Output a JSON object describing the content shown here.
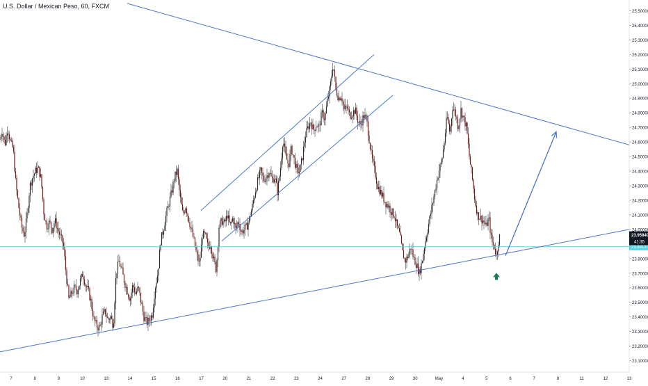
{
  "header": {
    "symbol_title": "U.S. Dollar / Mexican Peso, 60, FXCM"
  },
  "colors": {
    "background": "#ffffff",
    "candle_body": "#7a1218",
    "candle_wick": "#8c8c8c",
    "trendline": "#4a76c9",
    "horizontal_level": "#4fd6e8",
    "arrow_marker": "#1f7a56",
    "price_label_bg": "#131722",
    "level_label_bg": "#4fd6e8",
    "axis_text": "#131722"
  },
  "chart_data": {
    "type": "candlestick",
    "title": "U.S. Dollar / Mexican Peso, 60, FXCM",
    "ylim": [
      23.05,
      25.55
    ],
    "y_ticks": [
      "25.50000",
      "25.40000",
      "25.30000",
      "25.20000",
      "25.10000",
      "25.00000",
      "24.90000",
      "24.80000",
      "24.70000",
      "24.60000",
      "24.50000",
      "24.40000",
      "24.30000",
      "24.20000",
      "24.10000",
      "24.00000",
      "23.90000",
      "23.80000",
      "23.70000",
      "23.60000",
      "23.50000",
      "23.40000",
      "23.30000",
      "23.20000",
      "23.10000"
    ],
    "x_ticks": [
      "7",
      "8",
      "9",
      "10",
      "13",
      "14",
      "15",
      "16",
      "17",
      "20",
      "21",
      "22",
      "23",
      "24",
      "27",
      "28",
      "29",
      "30",
      "May",
      "4",
      "5",
      "6",
      "7",
      "8",
      "11",
      "12",
      "13"
    ],
    "current_price_label": "23.95840",
    "countdown_label": "41:35",
    "level_label": "23.88137",
    "horizontal_level": 23.8814,
    "price_path": [
      [
        0,
        24.62
      ],
      [
        3,
        24.68
      ],
      [
        7,
        24.58
      ],
      [
        11,
        24.7
      ],
      [
        15,
        24.6
      ],
      [
        19,
        24.55
      ],
      [
        23,
        24.3
      ],
      [
        27,
        24.15
      ],
      [
        31,
        24.02
      ],
      [
        35,
        23.96
      ],
      [
        39,
        24.1
      ],
      [
        43,
        24.3
      ],
      [
        47,
        24.36
      ],
      [
        51,
        24.4
      ],
      [
        55,
        24.42
      ],
      [
        59,
        24.35
      ],
      [
        63,
        24.12
      ],
      [
        67,
        24.02
      ],
      [
        71,
        24.05
      ],
      [
        75,
        24.0
      ],
      [
        79,
        24.06
      ],
      [
        83,
        24.0
      ],
      [
        87,
        23.95
      ],
      [
        91,
        23.9
      ],
      [
        95,
        23.7
      ],
      [
        99,
        23.52
      ],
      [
        103,
        23.56
      ],
      [
        107,
        23.6
      ],
      [
        111,
        23.58
      ],
      [
        115,
        23.64
      ],
      [
        119,
        23.7
      ],
      [
        123,
        23.62
      ],
      [
        127,
        23.58
      ],
      [
        131,
        23.5
      ],
      [
        135,
        23.38
      ],
      [
        139,
        23.34
      ],
      [
        143,
        23.32
      ],
      [
        147,
        23.4
      ],
      [
        151,
        23.44
      ],
      [
        155,
        23.38
      ],
      [
        159,
        23.4
      ],
      [
        163,
        23.34
      ],
      [
        167,
        23.7
      ],
      [
        171,
        23.78
      ],
      [
        175,
        23.72
      ],
      [
        179,
        23.64
      ],
      [
        183,
        23.58
      ],
      [
        187,
        23.52
      ],
      [
        191,
        23.62
      ],
      [
        195,
        23.56
      ],
      [
        199,
        23.6
      ],
      [
        203,
        23.5
      ],
      [
        207,
        23.4
      ],
      [
        211,
        23.36
      ],
      [
        215,
        23.38
      ],
      [
        219,
        23.42
      ],
      [
        223,
        23.6
      ],
      [
        227,
        23.7
      ],
      [
        231,
        23.92
      ],
      [
        235,
        24.0
      ],
      [
        239,
        24.1
      ],
      [
        243,
        24.18
      ],
      [
        247,
        24.26
      ],
      [
        251,
        24.36
      ],
      [
        255,
        24.4
      ],
      [
        259,
        24.22
      ],
      [
        263,
        24.1
      ],
      [
        267,
        24.16
      ],
      [
        271,
        24.08
      ],
      [
        275,
        24.0
      ],
      [
        279,
        23.92
      ],
      [
        283,
        23.82
      ],
      [
        287,
        23.76
      ],
      [
        291,
        23.96
      ],
      [
        295,
        23.96
      ],
      [
        299,
        23.88
      ],
      [
        303,
        23.9
      ],
      [
        307,
        23.8
      ],
      [
        311,
        23.72
      ],
      [
        315,
        24.02
      ],
      [
        319,
        24.06
      ],
      [
        323,
        24.04
      ],
      [
        327,
        24.1
      ],
      [
        331,
        24.02
      ],
      [
        335,
        24.08
      ],
      [
        339,
        24.0
      ],
      [
        343,
        24.06
      ],
      [
        347,
        23.98
      ],
      [
        351,
        24.0
      ],
      [
        355,
        24.02
      ],
      [
        359,
        24.08
      ],
      [
        363,
        24.16
      ],
      [
        367,
        24.26
      ],
      [
        371,
        24.34
      ],
      [
        375,
        24.4
      ],
      [
        379,
        24.34
      ],
      [
        383,
        24.36
      ],
      [
        387,
        24.4
      ],
      [
        391,
        24.34
      ],
      [
        395,
        24.36
      ],
      [
        399,
        24.26
      ],
      [
        403,
        24.4
      ],
      [
        407,
        24.62
      ],
      [
        411,
        24.5
      ],
      [
        415,
        24.44
      ],
      [
        419,
        24.56
      ],
      [
        423,
        24.48
      ],
      [
        427,
        24.4
      ],
      [
        431,
        24.4
      ],
      [
        435,
        24.5
      ],
      [
        439,
        24.64
      ],
      [
        443,
        24.7
      ],
      [
        447,
        24.74
      ],
      [
        451,
        24.68
      ],
      [
        455,
        24.72
      ],
      [
        459,
        24.7
      ],
      [
        463,
        24.8
      ],
      [
        467,
        24.76
      ],
      [
        471,
        24.88
      ],
      [
        475,
        24.98
      ],
      [
        479,
        25.14
      ],
      [
        483,
        24.96
      ],
      [
        487,
        24.9
      ],
      [
        491,
        24.92
      ],
      [
        495,
        24.82
      ],
      [
        499,
        24.84
      ],
      [
        503,
        24.78
      ],
      [
        507,
        24.8
      ],
      [
        511,
        24.82
      ],
      [
        515,
        24.74
      ],
      [
        519,
        24.72
      ],
      [
        523,
        24.78
      ],
      [
        527,
        24.76
      ],
      [
        531,
        24.62
      ],
      [
        535,
        24.48
      ],
      [
        539,
        24.4
      ],
      [
        543,
        24.3
      ],
      [
        547,
        24.26
      ],
      [
        551,
        24.22
      ],
      [
        555,
        24.18
      ],
      [
        559,
        24.16
      ],
      [
        563,
        24.12
      ],
      [
        567,
        24.1
      ],
      [
        571,
        24.02
      ],
      [
        575,
        23.96
      ],
      [
        579,
        23.84
      ],
      [
        583,
        23.78
      ],
      [
        587,
        23.82
      ],
      [
        591,
        23.88
      ],
      [
        595,
        23.8
      ],
      [
        599,
        23.76
      ],
      [
        603,
        23.7
      ],
      [
        607,
        23.78
      ],
      [
        611,
        23.9
      ],
      [
        615,
        24.0
      ],
      [
        619,
        24.1
      ],
      [
        623,
        24.2
      ],
      [
        627,
        24.3
      ],
      [
        631,
        24.4
      ],
      [
        635,
        24.46
      ],
      [
        639,
        24.6
      ],
      [
        643,
        24.78
      ],
      [
        647,
        24.66
      ],
      [
        651,
        24.84
      ],
      [
        655,
        24.8
      ],
      [
        659,
        24.7
      ],
      [
        663,
        24.82
      ],
      [
        667,
        24.76
      ],
      [
        671,
        24.7
      ],
      [
        675,
        24.5
      ],
      [
        679,
        24.36
      ],
      [
        683,
        24.2
      ],
      [
        687,
        24.1
      ],
      [
        691,
        24.08
      ],
      [
        695,
        24.06
      ],
      [
        699,
        24.02
      ],
      [
        703,
        24.08
      ],
      [
        707,
        23.92
      ],
      [
        711,
        23.88
      ],
      [
        714,
        23.82
      ],
      [
        717,
        23.92
      ],
      [
        719,
        23.96
      ]
    ],
    "trendlines": [
      {
        "name": "upper-resistance",
        "points": [
          [
            183,
            25.55
          ],
          [
            905,
            24.58
          ]
        ]
      },
      {
        "name": "lower-support",
        "points": [
          [
            0,
            23.16
          ],
          [
            905,
            24.0
          ]
        ]
      },
      {
        "name": "channel-upper",
        "points": [
          [
            289,
            24.13
          ],
          [
            538,
            25.2
          ]
        ]
      },
      {
        "name": "channel-lower",
        "points": [
          [
            319,
            23.92
          ],
          [
            565,
            24.92
          ]
        ]
      }
    ],
    "projection_arrow": {
      "from": [
        727,
        23.82
      ],
      "to": [
        800,
        24.67
      ]
    },
    "up_marker_at": [
      714,
      23.74
    ]
  }
}
